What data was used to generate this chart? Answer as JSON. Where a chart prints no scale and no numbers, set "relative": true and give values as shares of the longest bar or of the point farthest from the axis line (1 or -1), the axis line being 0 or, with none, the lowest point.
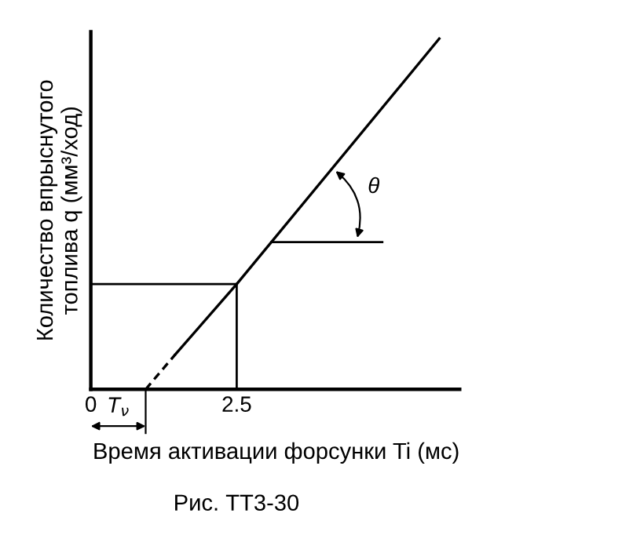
{
  "chart_data": {
    "type": "line",
    "relative": true,
    "xlabel": "Время активации форсунки Ti (мс)",
    "ylabel": "Количество впрыснутого\nтоплива q (мм³/ход)",
    "xlim": [
      0,
      6.32
    ],
    "xticks": [
      0,
      2.5
    ],
    "grid": false,
    "legend": false,
    "marker": "none",
    "series": [
      {
        "color": "#000000",
        "line_style": "dashed",
        "x": [
          0.94,
          1.45
        ],
        "values": [
          0,
          0.1
        ]
      },
      {
        "color": "#000000",
        "line_style": "solid",
        "x": [
          1.45,
          2.5,
          5.97
        ],
        "values": [
          0.1,
          0.3,
          1
        ]
      }
    ],
    "ref_lines": [
      {
        "axis": "x",
        "value": 2.5,
        "color": "#000000"
      },
      {
        "axis": "y",
        "value": 0.3,
        "color": "#000000"
      }
    ],
    "annotations": [
      "T$_{ν}$",
      "θ",
      "Рис. ТТ3-30"
    ]
  }
}
